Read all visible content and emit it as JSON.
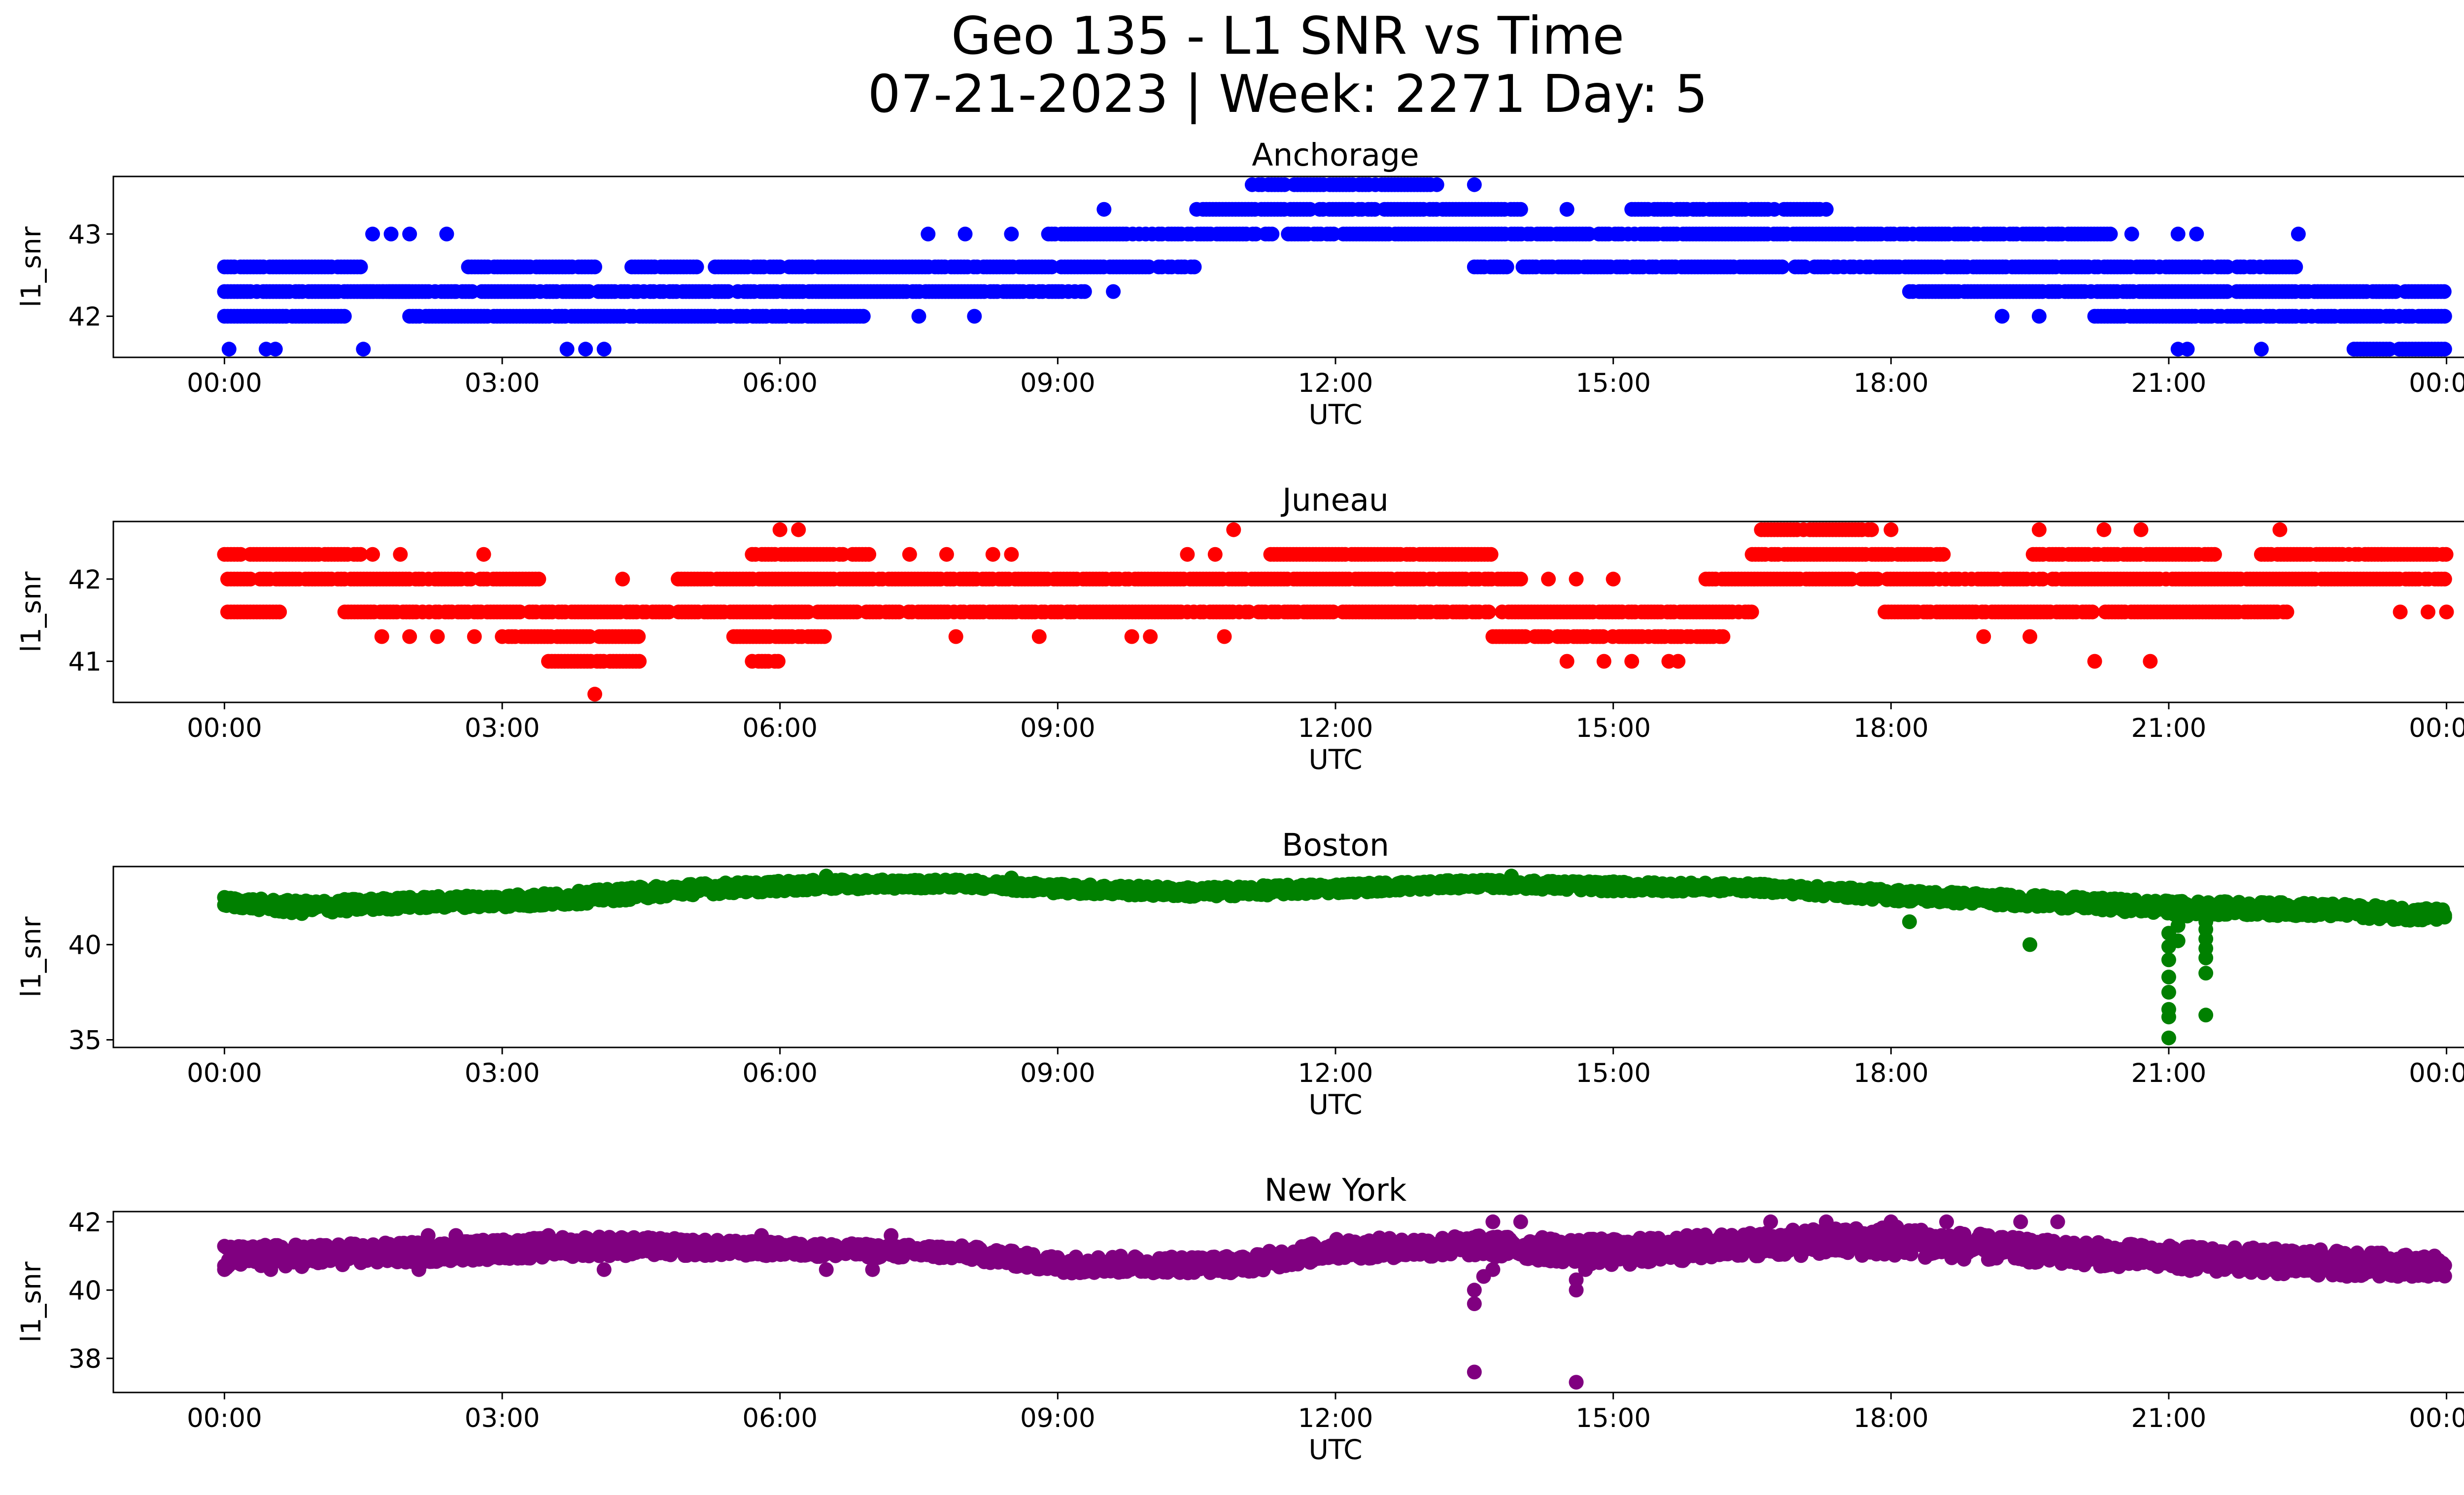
{
  "figure": {
    "title_line1": "Geo 135 - L1 SNR vs Time",
    "title_line2": "07-21-2023 | Week: 2271 Day: 5"
  },
  "chart_data": [
    {
      "type": "scatter",
      "title": "Anchorage",
      "xlabel": "UTC",
      "ylabel": "l1_snr",
      "color": "#0000ff",
      "x_ticks": [
        "00:00",
        "03:00",
        "06:00",
        "09:00",
        "12:00",
        "15:00",
        "18:00",
        "21:00",
        "00:00"
      ],
      "y_ticks": [
        42,
        43
      ],
      "xlim_hours": [
        -1.2,
        25.2
      ],
      "ylim": [
        41.5,
        43.7
      ],
      "y_levels": [
        41.6,
        42.0,
        42.3,
        42.6,
        43.0,
        43.3,
        43.6
      ],
      "series": [
        {
          "segments": [
            {
              "from": 0.0,
              "to": 1.3,
              "y": 42.0
            },
            {
              "from": 0.0,
              "to": 2.5,
              "y": 42.3
            },
            {
              "from": 0.0,
              "to": 1.5,
              "y": 42.6
            },
            {
              "from": 1.5,
              "to": 2.0,
              "y": 42.3
            },
            {
              "from": 2.0,
              "to": 6.9,
              "y": 42.0
            },
            {
              "from": 2.5,
              "to": 9.3,
              "y": 42.3
            },
            {
              "from": 2.6,
              "to": 4.0,
              "y": 42.6
            },
            {
              "from": 4.4,
              "to": 5.1,
              "y": 42.6
            },
            {
              "from": 5.3,
              "to": 6.0,
              "y": 42.6
            },
            {
              "from": 6.1,
              "to": 10.5,
              "y": 42.6
            },
            {
              "from": 8.9,
              "to": 13.2,
              "y": 43.0
            },
            {
              "from": 10.5,
              "to": 14.0,
              "y": 43.3
            },
            {
              "from": 11.1,
              "to": 13.1,
              "y": 43.6
            },
            {
              "from": 13.2,
              "to": 18.2,
              "y": 43.0
            },
            {
              "from": 13.5,
              "to": 19.5,
              "y": 42.6
            },
            {
              "from": 15.2,
              "to": 17.3,
              "y": 43.3
            },
            {
              "from": 18.2,
              "to": 24.0,
              "y": 42.3
            },
            {
              "from": 18.2,
              "to": 20.4,
              "y": 43.0
            },
            {
              "from": 19.5,
              "to": 22.4,
              "y": 42.6
            },
            {
              "from": 20.2,
              "to": 24.0,
              "y": 42.0
            },
            {
              "from": 23.0,
              "to": 24.0,
              "y": 41.6
            }
          ],
          "points": [
            [
              0.05,
              41.6
            ],
            [
              0.45,
              41.6
            ],
            [
              0.55,
              41.6
            ],
            [
              1.5,
              41.6
            ],
            [
              3.7,
              41.6
            ],
            [
              3.9,
              41.6
            ],
            [
              4.1,
              41.6
            ],
            [
              1.6,
              43.0
            ],
            [
              1.8,
              43.0
            ],
            [
              2.0,
              43.0
            ],
            [
              2.4,
              43.0
            ],
            [
              7.5,
              42.0
            ],
            [
              8.1,
              42.0
            ],
            [
              7.6,
              43.0
            ],
            [
              8.0,
              43.0
            ],
            [
              8.5,
              43.0
            ],
            [
              9.5,
              43.3
            ],
            [
              9.6,
              42.3
            ],
            [
              14.5,
              43.3
            ],
            [
              13.5,
              43.6
            ],
            [
              19.2,
              42.0
            ],
            [
              19.6,
              42.0
            ],
            [
              21.1,
              41.6
            ],
            [
              21.2,
              41.6
            ],
            [
              22.0,
              41.6
            ],
            [
              21.1,
              43.0
            ],
            [
              21.3,
              43.0
            ],
            [
              22.4,
              43.0
            ],
            [
              19.8,
              43.0
            ],
            [
              20.6,
              43.0
            ]
          ]
        }
      ]
    },
    {
      "type": "scatter",
      "title": "Juneau",
      "xlabel": "UTC",
      "ylabel": "l1_snr",
      "color": "#ff0000",
      "x_ticks": [
        "00:00",
        "03:00",
        "06:00",
        "09:00",
        "12:00",
        "15:00",
        "18:00",
        "21:00",
        "00:00"
      ],
      "y_ticks": [
        41,
        42
      ],
      "xlim_hours": [
        -1.2,
        25.2
      ],
      "ylim": [
        40.5,
        42.7
      ],
      "y_levels": [
        40.6,
        41.0,
        41.3,
        41.6,
        42.0,
        42.3,
        42.6
      ],
      "series": [
        {
          "segments": [
            {
              "from": 0.0,
              "to": 1.5,
              "y": 42.3
            },
            {
              "from": 0.0,
              "to": 3.4,
              "y": 42.0
            },
            {
              "from": 0.0,
              "to": 0.6,
              "y": 41.6
            },
            {
              "from": 1.3,
              "to": 13.7,
              "y": 41.6
            },
            {
              "from": 3.0,
              "to": 4.5,
              "y": 41.3
            },
            {
              "from": 3.5,
              "to": 4.5,
              "y": 41.0
            },
            {
              "from": 4.9,
              "to": 14.0,
              "y": 42.0
            },
            {
              "from": 5.5,
              "to": 6.5,
              "y": 41.3
            },
            {
              "from": 5.7,
              "to": 6.0,
              "y": 41.0
            },
            {
              "from": 5.7,
              "to": 7.0,
              "y": 42.3
            },
            {
              "from": 11.3,
              "to": 13.7,
              "y": 42.3
            },
            {
              "from": 13.7,
              "to": 16.2,
              "y": 41.3
            },
            {
              "from": 13.8,
              "to": 16.5,
              "y": 41.6
            },
            {
              "from": 16.0,
              "to": 24.0,
              "y": 42.0
            },
            {
              "from": 16.5,
              "to": 18.6,
              "y": 42.3
            },
            {
              "from": 16.6,
              "to": 17.8,
              "y": 42.6
            },
            {
              "from": 17.9,
              "to": 22.3,
              "y": 41.6
            },
            {
              "from": 19.5,
              "to": 21.5,
              "y": 42.3
            },
            {
              "from": 22.0,
              "to": 24.0,
              "y": 42.3
            }
          ],
          "points": [
            [
              1.7,
              41.3
            ],
            [
              2.0,
              41.3
            ],
            [
              2.3,
              41.3
            ],
            [
              2.7,
              41.3
            ],
            [
              1.6,
              42.3
            ],
            [
              1.9,
              42.3
            ],
            [
              2.8,
              42.3
            ],
            [
              4.0,
              40.6
            ],
            [
              4.3,
              42.0
            ],
            [
              7.4,
              42.3
            ],
            [
              7.8,
              42.3
            ],
            [
              8.3,
              42.3
            ],
            [
              8.5,
              42.3
            ],
            [
              7.9,
              41.3
            ],
            [
              8.8,
              41.3
            ],
            [
              10.4,
              42.3
            ],
            [
              10.7,
              42.3
            ],
            [
              10.9,
              42.6
            ],
            [
              10.8,
              41.3
            ],
            [
              10.0,
              41.3
            ],
            [
              9.8,
              41.3
            ],
            [
              6.0,
              42.6
            ],
            [
              6.2,
              42.6
            ],
            [
              14.3,
              42.0
            ],
            [
              14.6,
              42.0
            ],
            [
              15.0,
              42.0
            ],
            [
              14.5,
              41.0
            ],
            [
              14.9,
              41.0
            ],
            [
              15.2,
              41.0
            ],
            [
              15.6,
              41.0
            ],
            [
              15.7,
              41.0
            ],
            [
              23.5,
              41.6
            ],
            [
              23.8,
              41.6
            ],
            [
              24.0,
              41.6
            ],
            [
              23.3,
              42.3
            ],
            [
              19.0,
              41.3
            ],
            [
              19.5,
              41.3
            ],
            [
              20.2,
              41.0
            ],
            [
              20.8,
              41.0
            ],
            [
              20.3,
              42.6
            ],
            [
              20.7,
              42.6
            ],
            [
              19.6,
              42.6
            ],
            [
              18.0,
              42.6
            ],
            [
              22.2,
              42.6
            ]
          ]
        }
      ]
    },
    {
      "type": "scatter",
      "title": "Boston",
      "xlabel": "UTC",
      "ylabel": "l1_snr",
      "color": "#008000",
      "x_ticks": [
        "00:00",
        "03:00",
        "06:00",
        "09:00",
        "12:00",
        "15:00",
        "18:00",
        "21:00",
        "00:00"
      ],
      "y_ticks": [
        35,
        40
      ],
      "xlim_hours": [
        -1.2,
        25.2
      ],
      "ylim": [
        34.6,
        44.1
      ],
      "y_band": [
        [
          0.0,
          42.0,
          42.5
        ],
        [
          0.8,
          41.6,
          42.3
        ],
        [
          2.0,
          41.9,
          42.5
        ],
        [
          3.5,
          42.0,
          42.7
        ],
        [
          5.0,
          42.6,
          43.2
        ],
        [
          6.5,
          42.9,
          43.4
        ],
        [
          8.0,
          43.0,
          43.4
        ],
        [
          9.0,
          42.7,
          43.2
        ],
        [
          10.5,
          42.5,
          43.0
        ],
        [
          12.0,
          42.7,
          43.2
        ],
        [
          13.5,
          43.0,
          43.4
        ],
        [
          15.0,
          42.8,
          43.3
        ],
        [
          16.5,
          42.8,
          43.2
        ],
        [
          18.0,
          42.3,
          42.9
        ],
        [
          19.5,
          42.0,
          42.6
        ],
        [
          21.0,
          41.6,
          42.3
        ],
        [
          22.5,
          41.5,
          42.2
        ],
        [
          24.0,
          41.2,
          41.9
        ]
      ],
      "series": [
        {
          "points": [
            [
              18.2,
              41.2
            ],
            [
              19.5,
              40.0
            ],
            [
              21.0,
              35.1
            ],
            [
              21.0,
              36.2
            ],
            [
              21.0,
              36.6
            ],
            [
              21.0,
              37.5
            ],
            [
              21.0,
              38.3
            ],
            [
              21.0,
              39.2
            ],
            [
              21.0,
              39.9
            ],
            [
              21.0,
              40.6
            ],
            [
              21.1,
              41.0
            ],
            [
              21.1,
              40.2
            ],
            [
              21.4,
              36.3
            ],
            [
              21.4,
              38.5
            ],
            [
              21.4,
              39.3
            ],
            [
              21.4,
              39.8
            ],
            [
              21.4,
              40.3
            ],
            [
              21.4,
              40.8
            ],
            [
              21.4,
              41.2
            ],
            [
              21.2,
              41.5
            ],
            [
              6.5,
              43.6
            ],
            [
              8.5,
              43.5
            ],
            [
              13.9,
              43.6
            ]
          ]
        }
      ]
    },
    {
      "type": "scatter",
      "title": "New York",
      "xlabel": "UTC",
      "ylabel": "l1_snr",
      "color": "#800080",
      "x_ticks": [
        "00:00",
        "03:00",
        "06:00",
        "09:00",
        "12:00",
        "15:00",
        "18:00",
        "21:00",
        "00:00"
      ],
      "y_ticks": [
        38,
        40,
        42
      ],
      "xlim_hours": [
        -1.2,
        25.2
      ],
      "ylim": [
        37.0,
        42.3
      ],
      "y_band": [
        [
          0.0,
          40.6,
          41.3
        ],
        [
          2.0,
          40.8,
          41.4
        ],
        [
          4.0,
          41.0,
          41.6
        ],
        [
          6.0,
          41.0,
          41.4
        ],
        [
          8.0,
          40.9,
          41.3
        ],
        [
          9.0,
          40.5,
          41.0
        ],
        [
          11.0,
          40.5,
          41.0
        ],
        [
          12.0,
          40.9,
          41.5
        ],
        [
          13.5,
          41.0,
          41.6
        ],
        [
          15.0,
          40.7,
          41.5
        ],
        [
          16.5,
          41.0,
          41.7
        ],
        [
          18.0,
          41.0,
          41.9
        ],
        [
          19.5,
          40.8,
          41.5
        ],
        [
          21.0,
          40.6,
          41.3
        ],
        [
          22.5,
          40.4,
          41.2
        ],
        [
          24.0,
          40.4,
          41.0
        ]
      ],
      "series": [
        {
          "points": [
            [
              13.5,
              37.6
            ],
            [
              13.5,
              39.6
            ],
            [
              13.5,
              40.0
            ],
            [
              13.6,
              40.4
            ],
            [
              13.7,
              40.6
            ],
            [
              14.6,
              37.3
            ],
            [
              14.6,
              40.0
            ],
            [
              14.6,
              40.3
            ],
            [
              14.7,
              40.6
            ],
            [
              13.7,
              42.0
            ],
            [
              14.0,
              42.0
            ],
            [
              16.7,
              42.0
            ],
            [
              17.3,
              42.0
            ],
            [
              18.0,
              42.0
            ],
            [
              18.6,
              42.0
            ],
            [
              19.4,
              42.0
            ],
            [
              19.8,
              42.0
            ],
            [
              2.2,
              41.6
            ],
            [
              2.5,
              41.6
            ],
            [
              3.5,
              41.6
            ],
            [
              7.2,
              41.6
            ],
            [
              5.8,
              41.6
            ],
            [
              0.0,
              40.6
            ],
            [
              0.5,
              40.6
            ],
            [
              2.1,
              40.6
            ],
            [
              4.1,
              40.6
            ],
            [
              7.0,
              40.6
            ],
            [
              6.5,
              40.6
            ]
          ]
        }
      ]
    }
  ]
}
